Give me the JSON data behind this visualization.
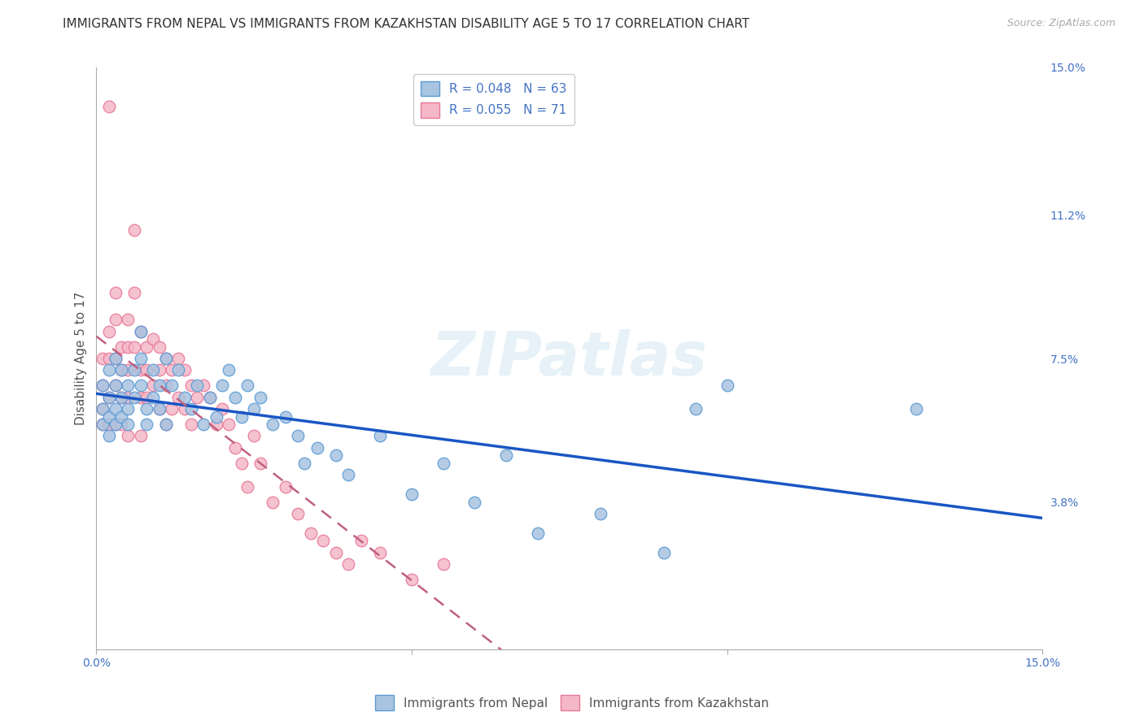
{
  "title": "IMMIGRANTS FROM NEPAL VS IMMIGRANTS FROM KAZAKHSTAN DISABILITY AGE 5 TO 17 CORRELATION CHART",
  "source": "Source: ZipAtlas.com",
  "ylabel": "Disability Age 5 to 17",
  "xlim": [
    0.0,
    0.15
  ],
  "ylim": [
    0.0,
    0.15
  ],
  "ytick_labels_right": [
    "15.0%",
    "11.2%",
    "7.5%",
    "3.8%"
  ],
  "ytick_vals_right": [
    0.15,
    0.112,
    0.075,
    0.038
  ],
  "watermark": "ZIPatlas",
  "nepal_color": "#a8c4e0",
  "nepal_color_dark": "#5b9bd5",
  "kazakhstan_color": "#f4b8c8",
  "kazakhstan_color_dark": "#e87898",
  "nepal_R": 0.048,
  "nepal_N": 63,
  "kazakhstan_R": 0.055,
  "kazakhstan_N": 71,
  "nepal_scatter_x": [
    0.001,
    0.001,
    0.001,
    0.002,
    0.002,
    0.002,
    0.002,
    0.003,
    0.003,
    0.003,
    0.003,
    0.004,
    0.004,
    0.004,
    0.005,
    0.005,
    0.005,
    0.006,
    0.006,
    0.007,
    0.007,
    0.007,
    0.008,
    0.008,
    0.009,
    0.009,
    0.01,
    0.01,
    0.011,
    0.011,
    0.012,
    0.013,
    0.014,
    0.015,
    0.016,
    0.017,
    0.018,
    0.019,
    0.02,
    0.021,
    0.022,
    0.023,
    0.024,
    0.025,
    0.026,
    0.028,
    0.03,
    0.032,
    0.033,
    0.035,
    0.038,
    0.04,
    0.045,
    0.05,
    0.055,
    0.06,
    0.065,
    0.07,
    0.08,
    0.09,
    0.095,
    0.1,
    0.13
  ],
  "nepal_scatter_y": [
    0.068,
    0.062,
    0.058,
    0.072,
    0.065,
    0.06,
    0.055,
    0.068,
    0.075,
    0.062,
    0.058,
    0.072,
    0.065,
    0.06,
    0.068,
    0.062,
    0.058,
    0.072,
    0.065,
    0.082,
    0.075,
    0.068,
    0.062,
    0.058,
    0.072,
    0.065,
    0.068,
    0.062,
    0.075,
    0.058,
    0.068,
    0.072,
    0.065,
    0.062,
    0.068,
    0.058,
    0.065,
    0.06,
    0.068,
    0.072,
    0.065,
    0.06,
    0.068,
    0.062,
    0.065,
    0.058,
    0.06,
    0.055,
    0.048,
    0.052,
    0.05,
    0.045,
    0.055,
    0.04,
    0.048,
    0.038,
    0.05,
    0.03,
    0.035,
    0.025,
    0.062,
    0.068,
    0.062
  ],
  "kazakhstan_scatter_x": [
    0.001,
    0.001,
    0.001,
    0.001,
    0.002,
    0.002,
    0.002,
    0.002,
    0.002,
    0.003,
    0.003,
    0.003,
    0.003,
    0.003,
    0.004,
    0.004,
    0.004,
    0.004,
    0.005,
    0.005,
    0.005,
    0.005,
    0.005,
    0.006,
    0.006,
    0.006,
    0.007,
    0.007,
    0.007,
    0.007,
    0.008,
    0.008,
    0.008,
    0.009,
    0.009,
    0.01,
    0.01,
    0.01,
    0.011,
    0.011,
    0.011,
    0.012,
    0.012,
    0.013,
    0.013,
    0.014,
    0.014,
    0.015,
    0.015,
    0.016,
    0.017,
    0.018,
    0.019,
    0.02,
    0.021,
    0.022,
    0.023,
    0.024,
    0.025,
    0.026,
    0.028,
    0.03,
    0.032,
    0.034,
    0.036,
    0.038,
    0.04,
    0.042,
    0.045,
    0.05,
    0.055
  ],
  "kazakhstan_scatter_y": [
    0.068,
    0.075,
    0.062,
    0.058,
    0.14,
    0.082,
    0.075,
    0.065,
    0.058,
    0.092,
    0.085,
    0.075,
    0.068,
    0.058,
    0.078,
    0.072,
    0.065,
    0.058,
    0.085,
    0.078,
    0.072,
    0.065,
    0.055,
    0.108,
    0.092,
    0.078,
    0.082,
    0.072,
    0.065,
    0.055,
    0.078,
    0.072,
    0.065,
    0.08,
    0.068,
    0.078,
    0.072,
    0.062,
    0.075,
    0.068,
    0.058,
    0.072,
    0.062,
    0.075,
    0.065,
    0.072,
    0.062,
    0.068,
    0.058,
    0.065,
    0.068,
    0.065,
    0.058,
    0.062,
    0.058,
    0.052,
    0.048,
    0.042,
    0.055,
    0.048,
    0.038,
    0.042,
    0.035,
    0.03,
    0.028,
    0.025,
    0.022,
    0.028,
    0.025,
    0.018,
    0.022
  ],
  "background_color": "#ffffff",
  "grid_color": "#cccccc",
  "title_fontsize": 11,
  "axis_label_fontsize": 11,
  "tick_fontsize": 10,
  "legend_fontsize": 11
}
